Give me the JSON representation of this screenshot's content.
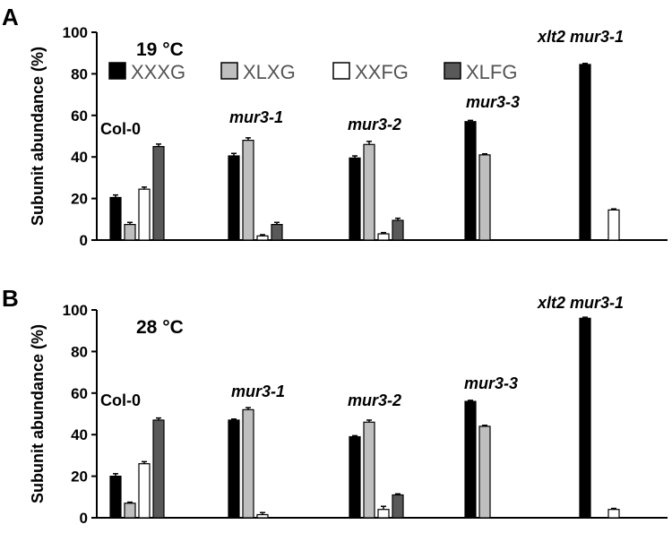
{
  "legend": [
    {
      "label": "XXXG",
      "color": "#000000"
    },
    {
      "label": "XLXG",
      "color": "#bfbfbf"
    },
    {
      "label": "XXFG",
      "color": "#ffffff"
    },
    {
      "label": "XLFG",
      "color": "#595959"
    }
  ],
  "chart_data": [
    {
      "type": "bar",
      "panel_label": "A",
      "title": "19 °C",
      "ylabel": "Subunit abundance (%)",
      "ylim": [
        0,
        100
      ],
      "yticks": [
        "0",
        "20",
        "40",
        "60",
        "80",
        "100"
      ],
      "categories": [
        "Col-0",
        "mur3-1",
        "mur3-2",
        "mur3-3",
        "xlt2 mur3-1"
      ],
      "series": [
        {
          "name": "XXXG",
          "values": [
            20.5,
            40.5,
            39.5,
            57,
            84.5
          ],
          "errors": [
            1.2,
            1.2,
            1.0,
            0.6,
            0.5
          ]
        },
        {
          "name": "XLXG",
          "values": [
            7.5,
            48,
            46,
            41,
            null
          ],
          "errors": [
            1.0,
            1.2,
            1.5,
            0.5,
            0
          ]
        },
        {
          "name": "XXFG",
          "values": [
            24.5,
            2,
            3,
            null,
            14.5
          ],
          "errors": [
            1.0,
            0.6,
            0.6,
            0,
            0.5
          ]
        },
        {
          "name": "XLFG",
          "values": [
            45,
            7.5,
            9.5,
            null,
            null
          ],
          "errors": [
            1.2,
            1.0,
            1.0,
            0,
            0
          ]
        }
      ],
      "grid": false,
      "legend_position": "top-left"
    },
    {
      "type": "bar",
      "panel_label": "B",
      "title": "28 °C",
      "ylabel": "Subunit abundance (%)",
      "ylim": [
        0,
        100
      ],
      "yticks": [
        "0",
        "20",
        "40",
        "60",
        "80",
        "100"
      ],
      "categories": [
        "Col-0",
        "mur3-1",
        "mur3-2",
        "mur3-3",
        "xlt2 mur3-1"
      ],
      "series": [
        {
          "name": "XXXG",
          "values": [
            20,
            47,
            39,
            56,
            96
          ],
          "errors": [
            1.2,
            0.5,
            0.5,
            0.5,
            0.5
          ]
        },
        {
          "name": "XLXG",
          "values": [
            7,
            52,
            46,
            44,
            null
          ],
          "errors": [
            0.5,
            1.0,
            1.0,
            0.5,
            0
          ]
        },
        {
          "name": "XXFG",
          "values": [
            26,
            1.5,
            4,
            null,
            4
          ],
          "errors": [
            1.0,
            1.0,
            1.5,
            0,
            0.5
          ]
        },
        {
          "name": "XLFG",
          "values": [
            47,
            null,
            11,
            null,
            null
          ],
          "errors": [
            1.0,
            0,
            0.5,
            0,
            0
          ]
        }
      ],
      "grid": false,
      "legend_position": "none"
    }
  ]
}
